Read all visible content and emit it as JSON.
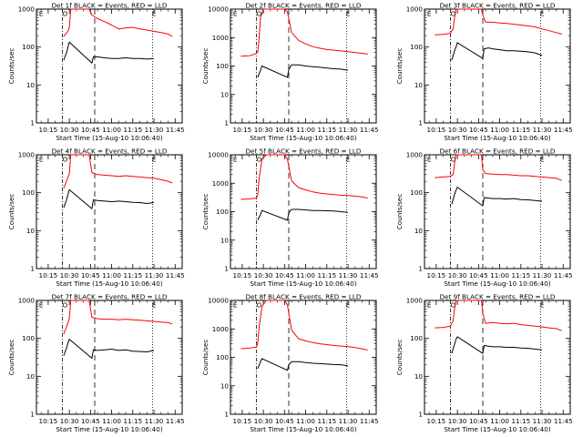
{
  "chart_data": [
    {
      "type": "line",
      "title": "Det 1f BLACK = Events, RED = LLD",
      "xlabel": "Start Time (15-Aug-10 10:06:40)",
      "ylabel": "Counts/sec",
      "yscale": "log",
      "ylim": [
        1,
        1000
      ],
      "y_ticks": [
        "1",
        "10",
        "100",
        "1000"
      ],
      "x_ticks": [
        "10:15",
        "10:30",
        "10:45",
        "11:00",
        "11:15",
        "11:30",
        "11:45"
      ],
      "markers": [
        "E",
        "O",
        "E"
      ],
      "series": [
        {
          "color": "#ff0000",
          "x": [
            "10:26",
            "10:29",
            "10:30",
            "10:31",
            "10:32",
            "10:33",
            "10:44",
            "10:46",
            "10:50",
            "10:55",
            "11:00",
            "11:05",
            "11:10",
            "11:15",
            "11:20",
            "11:25",
            "11:30",
            "11:35",
            "11:40",
            "11:43"
          ],
          "values": [
            190,
            260,
            330,
            1000,
            1000,
            1000,
            1000,
            700,
            560,
            470,
            380,
            300,
            320,
            330,
            300,
            280,
            260,
            240,
            220,
            190
          ]
        },
        {
          "color": "#000000",
          "x": [
            "10:26",
            "10:28",
            "10:29",
            "10:30",
            "10:46",
            "10:47",
            "10:50",
            "10:55",
            "11:00",
            "11:05",
            "11:10",
            "11:15",
            "11:20",
            "11:25",
            "11:30"
          ],
          "values": [
            45,
            70,
            100,
            135,
            38,
            55,
            55,
            52,
            50,
            50,
            52,
            50,
            50,
            48,
            50
          ]
        }
      ]
    },
    {
      "type": "line",
      "title": "Det 2f BLACK = Events, RED = LLD",
      "xlabel": "Start Time (15-Aug-10 10:06:40)",
      "ylabel": "Counts/sec",
      "yscale": "log",
      "ylim": [
        1,
        10000
      ],
      "y_ticks": [
        "1",
        "10",
        "100",
        "1000",
        "10000"
      ],
      "x_ticks": [
        "10:15",
        "10:30",
        "10:45",
        "11:00",
        "11:15",
        "11:30",
        "11:45"
      ],
      "markers": [
        "E",
        "O",
        "E"
      ],
      "series": [
        {
          "color": "#ff0000",
          "x": [
            "10:14",
            "10:20",
            "10:24",
            "10:26",
            "10:27",
            "10:28",
            "10:30",
            "10:33",
            "10:36",
            "10:40",
            "10:45",
            "10:47",
            "10:50",
            "10:55",
            "11:00",
            "11:05",
            "11:10",
            "11:15",
            "11:20",
            "11:25",
            "11:30",
            "11:35",
            "11:40",
            "11:44"
          ],
          "values": [
            220,
            230,
            260,
            300,
            1000,
            5000,
            10000,
            10000,
            10000,
            10000,
            10000,
            8000,
            1500,
            800,
            600,
            480,
            420,
            380,
            360,
            340,
            320,
            300,
            280,
            260
          ]
        },
        {
          "color": "#000000",
          "x": [
            "10:26",
            "10:28",
            "10:29",
            "10:47",
            "10:48",
            "10:50",
            "10:55",
            "11:00",
            "11:05",
            "11:10",
            "11:15",
            "11:20",
            "11:25",
            "11:30"
          ],
          "values": [
            40,
            70,
            100,
            40,
            75,
            110,
            110,
            100,
            95,
            90,
            85,
            80,
            78,
            70
          ]
        }
      ]
    },
    {
      "type": "line",
      "title": "Det 3f BLACK = Events, RED = LLD",
      "xlabel": "Start Time (15-Aug-10 10:06:40)",
      "ylabel": "Counts/sec",
      "yscale": "log",
      "ylim": [
        1,
        1000
      ],
      "y_ticks": [
        "1",
        "10",
        "100",
        "1000"
      ],
      "x_ticks": [
        "10:15",
        "10:30",
        "10:45",
        "11:00",
        "11:15",
        "11:30",
        "11:45"
      ],
      "markers": [
        "E",
        "O",
        "E"
      ],
      "series": [
        {
          "color": "#ff0000",
          "x": [
            "10:14",
            "10:20",
            "10:25",
            "10:27",
            "10:28",
            "10:29",
            "10:47",
            "10:48",
            "10:50",
            "10:55",
            "11:00",
            "11:05",
            "11:10",
            "11:15",
            "11:20",
            "11:25",
            "11:30",
            "11:35",
            "11:40",
            "11:44"
          ],
          "values": [
            210,
            215,
            230,
            300,
            600,
            1000,
            1000,
            700,
            450,
            450,
            430,
            420,
            400,
            380,
            360,
            340,
            300,
            270,
            240,
            220
          ]
        },
        {
          "color": "#000000",
          "x": [
            "10:26",
            "10:28",
            "10:29",
            "10:30",
            "10:48",
            "10:49",
            "10:52",
            "10:55",
            "11:00",
            "11:05",
            "11:10",
            "11:15",
            "11:20",
            "11:25",
            "11:30"
          ],
          "values": [
            45,
            80,
            100,
            130,
            50,
            90,
            95,
            90,
            85,
            80,
            80,
            78,
            75,
            70,
            60
          ]
        }
      ]
    },
    {
      "type": "line",
      "title": "Det 4f BLACK = Events, RED = LLD",
      "xlabel": "Start Time (15-Aug-10 10:06:40)",
      "ylabel": "Counts/sec",
      "yscale": "log",
      "ylim": [
        1,
        1000
      ],
      "y_ticks": [
        "1",
        "10",
        "100",
        "1000"
      ],
      "x_ticks": [
        "10:15",
        "10:30",
        "10:45",
        "11:00",
        "11:15",
        "11:30",
        "11:45"
      ],
      "markers": [
        "E",
        "O",
        "E"
      ],
      "series": [
        {
          "color": "#ff0000",
          "x": [
            "10:26",
            "10:28",
            "10:30",
            "10:31",
            "10:32",
            "10:44",
            "10:46",
            "10:50",
            "10:55",
            "11:00",
            "11:05",
            "11:10",
            "11:15",
            "11:20",
            "11:25",
            "11:30",
            "11:35",
            "11:40",
            "11:43"
          ],
          "values": [
            130,
            200,
            320,
            1000,
            1000,
            1000,
            340,
            300,
            290,
            280,
            270,
            280,
            270,
            260,
            250,
            240,
            220,
            200,
            180
          ]
        },
        {
          "color": "#000000",
          "x": [
            "10:26",
            "10:28",
            "10:29",
            "10:30",
            "10:46",
            "10:47",
            "10:50",
            "10:55",
            "11:00",
            "11:05",
            "11:10",
            "11:15",
            "11:20",
            "11:25",
            "11:30"
          ],
          "values": [
            40,
            65,
            90,
            120,
            38,
            65,
            62,
            60,
            58,
            60,
            58,
            56,
            55,
            52,
            55
          ]
        }
      ]
    },
    {
      "type": "line",
      "title": "Det 5f BLACK = Events, RED = LLD",
      "xlabel": "Start Time (15-Aug-10 10:06:40)",
      "ylabel": "Counts/sec",
      "yscale": "log",
      "ylim": [
        1,
        10000
      ],
      "y_ticks": [
        "1",
        "10",
        "100",
        "1000",
        "10000"
      ],
      "x_ticks": [
        "10:15",
        "10:30",
        "10:45",
        "11:00",
        "11:15",
        "11:30",
        "11:45"
      ],
      "markers": [
        "E",
        "O",
        "E"
      ],
      "series": [
        {
          "color": "#ff0000",
          "x": [
            "10:14",
            "10:20",
            "10:25",
            "10:26",
            "10:27",
            "10:29",
            "10:32",
            "10:36",
            "10:40",
            "10:45",
            "10:47",
            "10:50",
            "10:55",
            "11:00",
            "11:05",
            "11:10",
            "11:15",
            "11:20",
            "11:25",
            "11:30",
            "11:35",
            "11:40",
            "11:44"
          ],
          "values": [
            270,
            280,
            300,
            400,
            1500,
            7000,
            10000,
            10000,
            10000,
            10000,
            7000,
            1200,
            700,
            580,
            500,
            450,
            420,
            400,
            380,
            370,
            350,
            330,
            300
          ]
        },
        {
          "color": "#000000",
          "x": [
            "10:26",
            "10:28",
            "10:29",
            "10:47",
            "10:48",
            "10:50",
            "10:55",
            "11:00",
            "11:05",
            "11:10",
            "11:15",
            "11:20",
            "11:25",
            "11:30"
          ],
          "values": [
            50,
            80,
            110,
            50,
            90,
            120,
            120,
            115,
            110,
            110,
            108,
            105,
            100,
            95
          ]
        }
      ]
    },
    {
      "type": "line",
      "title": "Det 6f BLACK = Events, RED = LLD",
      "xlabel": "Start Time (15-Aug-10 10:06:40)",
      "ylabel": "Counts/sec",
      "yscale": "log",
      "ylim": [
        1,
        1000
      ],
      "y_ticks": [
        "1",
        "10",
        "100",
        "1000"
      ],
      "x_ticks": [
        "10:15",
        "10:30",
        "10:45",
        "11:00",
        "11:15",
        "11:30",
        "11:45"
      ],
      "markers": [
        "E",
        "O",
        "E"
      ],
      "series": [
        {
          "color": "#ff0000",
          "x": [
            "10:14",
            "10:20",
            "10:25",
            "10:27",
            "10:28",
            "10:29",
            "10:47",
            "10:48",
            "10:50",
            "10:55",
            "11:00",
            "11:05",
            "11:10",
            "11:15",
            "11:20",
            "11:25",
            "11:30",
            "11:35",
            "11:40",
            "11:44"
          ],
          "values": [
            250,
            260,
            270,
            300,
            600,
            1000,
            1000,
            400,
            320,
            310,
            300,
            300,
            290,
            280,
            280,
            270,
            260,
            250,
            240,
            210
          ]
        },
        {
          "color": "#000000",
          "x": [
            "10:26",
            "10:28",
            "10:29",
            "10:30",
            "10:48",
            "10:49",
            "10:52",
            "10:55",
            "11:00",
            "11:05",
            "11:10",
            "11:15",
            "11:20",
            "11:25",
            "11:30"
          ],
          "values": [
            50,
            90,
            115,
            140,
            45,
            75,
            72,
            70,
            70,
            68,
            70,
            66,
            65,
            62,
            60
          ]
        }
      ]
    },
    {
      "type": "line",
      "title": "Det 7f BLACK = Events, RED = LLD",
      "xlabel": "Start Time (15-Aug-10 10:06:40)",
      "ylabel": "Counts/sec",
      "yscale": "log",
      "ylim": [
        1,
        1000
      ],
      "y_ticks": [
        "1",
        "10",
        "100",
        "1000"
      ],
      "x_ticks": [
        "10:15",
        "10:30",
        "10:45",
        "11:00",
        "11:15",
        "11:30",
        "11:45"
      ],
      "markers": [
        "E",
        "O",
        "E"
      ],
      "series": [
        {
          "color": "#ff0000",
          "x": [
            "10:26",
            "10:28",
            "10:30",
            "10:31",
            "10:32",
            "10:44",
            "10:46",
            "10:50",
            "10:55",
            "11:00",
            "11:05",
            "11:10",
            "11:15",
            "11:20",
            "11:25",
            "11:30",
            "11:35",
            "11:40",
            "11:43"
          ],
          "values": [
            130,
            200,
            330,
            1000,
            1000,
            1000,
            360,
            330,
            320,
            320,
            310,
            320,
            310,
            300,
            290,
            280,
            270,
            260,
            240
          ]
        },
        {
          "color": "#000000",
          "x": [
            "10:26",
            "10:28",
            "10:29",
            "10:30",
            "10:46",
            "10:47",
            "10:50",
            "10:55",
            "11:00",
            "11:05",
            "11:10",
            "11:15",
            "11:20",
            "11:25",
            "11:30"
          ],
          "values": [
            35,
            55,
            75,
            95,
            30,
            50,
            48,
            50,
            52,
            48,
            50,
            46,
            45,
            44,
            48
          ]
        }
      ]
    },
    {
      "type": "line",
      "title": "Det 8f BLACK = Events, RED = LLD",
      "xlabel": "Start Time (15-Aug-10 10:06:40)",
      "ylabel": "Counts/sec",
      "yscale": "log",
      "ylim": [
        1,
        10000
      ],
      "y_ticks": [
        "1",
        "10",
        "100",
        "1000",
        "10000"
      ],
      "x_ticks": [
        "10:15",
        "10:30",
        "10:45",
        "11:00",
        "11:15",
        "11:30",
        "11:45"
      ],
      "markers": [
        "E",
        "O",
        "E"
      ],
      "series": [
        {
          "color": "#ff0000",
          "x": [
            "10:14",
            "10:20",
            "10:25",
            "10:26",
            "10:27",
            "10:29",
            "10:32",
            "10:36",
            "10:40",
            "10:45",
            "10:47",
            "10:50",
            "10:55",
            "11:00",
            "11:05",
            "11:10",
            "11:15",
            "11:20",
            "11:25",
            "11:30",
            "11:35",
            "11:40",
            "11:44"
          ],
          "values": [
            200,
            210,
            230,
            300,
            1200,
            6000,
            10000,
            10000,
            10000,
            10000,
            7000,
            900,
            450,
            380,
            330,
            300,
            280,
            260,
            250,
            240,
            220,
            200,
            180
          ]
        },
        {
          "color": "#000000",
          "x": [
            "10:26",
            "10:28",
            "10:29",
            "10:47",
            "10:48",
            "10:50",
            "10:55",
            "11:00",
            "11:05",
            "11:10",
            "11:15",
            "11:20",
            "11:25",
            "11:30"
          ],
          "values": [
            40,
            70,
            90,
            35,
            55,
            70,
            70,
            65,
            62,
            60,
            58,
            56,
            55,
            50
          ]
        }
      ]
    },
    {
      "type": "line",
      "title": "Det 9f BLACK = Events, RED = LLD",
      "xlabel": "Start Time (15-Aug-10 10:06:40)",
      "ylabel": "Counts/sec",
      "yscale": "log",
      "ylim": [
        1,
        1000
      ],
      "y_ticks": [
        "1",
        "10",
        "100",
        "1000"
      ],
      "x_ticks": [
        "10:15",
        "10:30",
        "10:45",
        "11:00",
        "11:15",
        "11:30",
        "11:45"
      ],
      "markers": [
        "E",
        "O",
        "E"
      ],
      "series": [
        {
          "color": "#ff0000",
          "x": [
            "10:14",
            "10:20",
            "10:25",
            "10:27",
            "10:28",
            "10:29",
            "10:47",
            "10:48",
            "10:50",
            "10:55",
            "11:00",
            "11:05",
            "11:10",
            "11:15",
            "11:20",
            "11:25",
            "11:30",
            "11:35",
            "11:40",
            "11:44"
          ],
          "values": [
            190,
            195,
            210,
            300,
            600,
            1000,
            1000,
            450,
            250,
            260,
            250,
            240,
            250,
            230,
            220,
            210,
            200,
            190,
            180,
            160
          ]
        },
        {
          "color": "#000000",
          "x": [
            "10:26",
            "10:28",
            "10:29",
            "10:30",
            "10:48",
            "10:49",
            "10:52",
            "10:55",
            "11:00",
            "11:05",
            "11:10",
            "11:15",
            "11:20",
            "11:25",
            "11:30"
          ],
          "values": [
            40,
            70,
            95,
            110,
            40,
            65,
            62,
            60,
            60,
            58,
            58,
            56,
            55,
            52,
            50
          ]
        }
      ]
    }
  ]
}
